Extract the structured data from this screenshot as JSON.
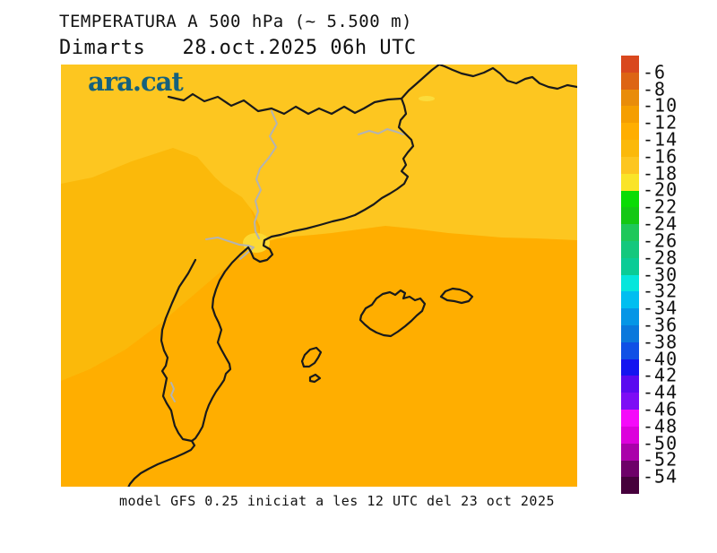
{
  "header": {
    "title": "TEMPERATURA A 500 hPa (~ 5.500 m)",
    "subtitle": "Dimarts   28.oct.2025 06h UTC"
  },
  "logo": {
    "text": "ara.cat",
    "color": "#15617D"
  },
  "map": {
    "colors": {
      "base": "#FFAE00",
      "mid": "#FBB90A",
      "light": "#FDC620",
      "delta_patch": "#FCD933",
      "north_patch": "#FBDC3C",
      "coast": "#1A1A1A",
      "inner_border": "#B3B3B3"
    }
  },
  "scale": {
    "labels": [
      "-6",
      "-8",
      "-10",
      "-12",
      "-14",
      "-16",
      "-18",
      "-20",
      "-22",
      "-24",
      "-26",
      "-28",
      "-30",
      "-32",
      "-34",
      "-36",
      "-38",
      "-40",
      "-42",
      "-44",
      "-46",
      "-48",
      "-50",
      "-52",
      "-54"
    ],
    "colors": [
      "#D9481E",
      "#DD6414",
      "#E98C0A",
      "#F59E00",
      "#FFAE00",
      "#FBB90A",
      "#FDC620",
      "#FAE428",
      "#0ADC05",
      "#14C814",
      "#1EC85A",
      "#14C87D",
      "#0ACC96",
      "#05E6DC",
      "#00BEF0",
      "#0596E6",
      "#0A78DC",
      "#0F50E6",
      "#1414F0",
      "#5A0AF0",
      "#7D0DF5",
      "#F50AFA",
      "#DC00DC",
      "#AA00AA",
      "#6E0069",
      "#46003C"
    ]
  },
  "footer": {
    "caption": "model GFS 0.25 iniciat a les 12 UTC del 23 oct 2025"
  }
}
